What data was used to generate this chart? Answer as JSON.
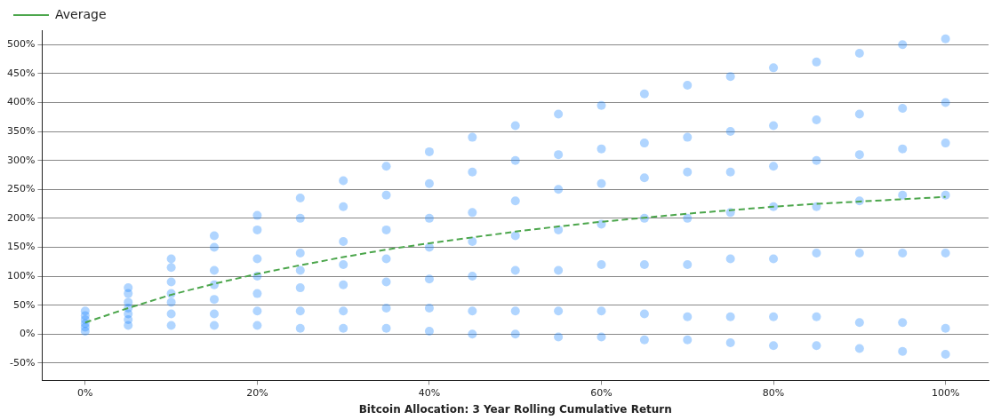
{
  "chart_data": {
    "type": "scatter",
    "xlabel": "Bitcoin Allocation: 3 Year Rolling Cumulative Return",
    "xlim": [
      -5,
      105
    ],
    "xticks": [
      {
        "value": 0,
        "label": "0%"
      },
      {
        "value": 20,
        "label": "20%"
      },
      {
        "value": 40,
        "label": "40%"
      },
      {
        "value": 60,
        "label": "60%"
      },
      {
        "value": 80,
        "label": "80%"
      },
      {
        "value": 100,
        "label": "100%"
      }
    ],
    "ylim": [
      -80,
      525
    ],
    "yticks": [
      {
        "value": -50,
        "label": "-50%"
      },
      {
        "value": 0,
        "label": "0%"
      },
      {
        "value": 50,
        "label": "50%"
      },
      {
        "value": 100,
        "label": "100%"
      },
      {
        "value": 150,
        "label": "150%"
      },
      {
        "value": 200,
        "label": "200%"
      },
      {
        "value": 250,
        "label": "250%"
      },
      {
        "value": 300,
        "label": "300%"
      },
      {
        "value": 350,
        "label": "350%"
      },
      {
        "value": 400,
        "label": "400%"
      },
      {
        "value": 450,
        "label": "450%"
      },
      {
        "value": 500,
        "label": "500%"
      }
    ],
    "grid": "y",
    "legend": "top left",
    "marker": "circle",
    "series": [
      {
        "color": "#1e88ff",
        "x": [
          0,
          0,
          0,
          0,
          0,
          0,
          5,
          5,
          5,
          5,
          5,
          5,
          5,
          10,
          10,
          10,
          10,
          10,
          10,
          10,
          15,
          15,
          15,
          15,
          15,
          15,
          15,
          20,
          20,
          20,
          20,
          20,
          20,
          20,
          25,
          25,
          25,
          25,
          25,
          25,
          25,
          30,
          30,
          30,
          30,
          30,
          30,
          30,
          35,
          35,
          35,
          35,
          35,
          35,
          35,
          40,
          40,
          40,
          40,
          40,
          40,
          40,
          45,
          45,
          45,
          45,
          45,
          45,
          45,
          50,
          50,
          50,
          50,
          50,
          50,
          50,
          55,
          55,
          55,
          55,
          55,
          55,
          55,
          60,
          60,
          60,
          60,
          60,
          60,
          60,
          65,
          65,
          65,
          65,
          65,
          65,
          65,
          70,
          70,
          70,
          70,
          70,
          70,
          70,
          75,
          75,
          75,
          75,
          75,
          75,
          75,
          80,
          80,
          80,
          80,
          80,
          80,
          80,
          85,
          85,
          85,
          85,
          85,
          85,
          85,
          90,
          90,
          90,
          90,
          90,
          90,
          90,
          95,
          95,
          95,
          95,
          95,
          95,
          95,
          100,
          100,
          100,
          100,
          100,
          100,
          100
        ],
        "values": [
          5,
          12,
          18,
          25,
          32,
          40,
          15,
          25,
          35,
          45,
          55,
          70,
          80,
          15,
          35,
          55,
          70,
          90,
          115,
          130,
          15,
          35,
          60,
          85,
          110,
          150,
          170,
          15,
          40,
          70,
          100,
          130,
          180,
          205,
          10,
          40,
          80,
          110,
          140,
          200,
          235,
          10,
          40,
          85,
          120,
          160,
          220,
          265,
          10,
          45,
          90,
          130,
          180,
          240,
          290,
          5,
          45,
          95,
          150,
          200,
          260,
          315,
          0,
          40,
          100,
          160,
          210,
          280,
          340,
          0,
          40,
          110,
          170,
          230,
          300,
          360,
          -5,
          40,
          110,
          180,
          250,
          310,
          380,
          -5,
          40,
          120,
          190,
          260,
          320,
          395,
          -10,
          35,
          120,
          200,
          270,
          330,
          415,
          -10,
          30,
          120,
          200,
          280,
          340,
          430,
          -15,
          30,
          130,
          210,
          280,
          350,
          445,
          -20,
          30,
          130,
          220,
          290,
          360,
          460,
          -20,
          30,
          140,
          220,
          300,
          370,
          470,
          -25,
          20,
          140,
          230,
          310,
          380,
          485,
          -30,
          20,
          140,
          240,
          320,
          390,
          500,
          -35,
          10,
          140,
          240,
          330,
          400,
          510
        ]
      },
      {
        "name": "Average",
        "type": "line",
        "color": "#4ca64c",
        "line_style": "dashed",
        "marker": "none",
        "x": [
          0,
          5,
          10,
          15,
          20,
          25,
          30,
          35,
          40,
          45,
          50,
          55,
          60,
          65,
          70,
          75,
          80,
          85,
          90,
          95,
          100
        ],
        "values": [
          20,
          45,
          68,
          87,
          104,
          119,
          133,
          146,
          157,
          167,
          177,
          186,
          194,
          201,
          208,
          214,
          220,
          225,
          229,
          233,
          237
        ]
      }
    ]
  }
}
